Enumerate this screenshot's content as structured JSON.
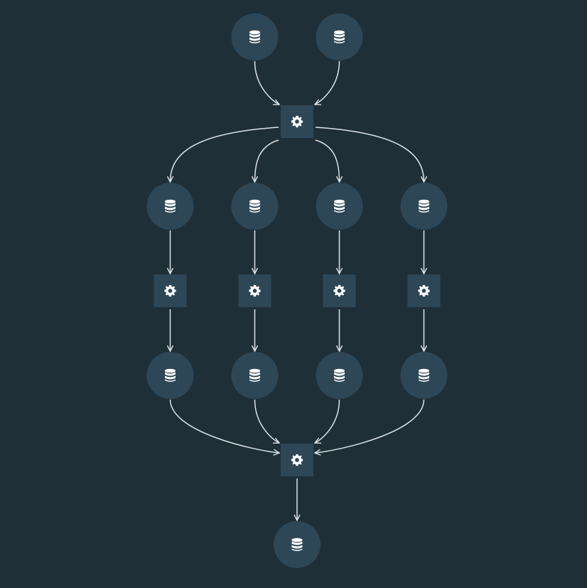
{
  "colors": {
    "background": "#1f2f38",
    "node_fill": "#2e4757",
    "edge": "#dde4e8",
    "icon": "#ffffff"
  },
  "icons": {
    "data_node": "database-icon",
    "process_node": "gear-icon"
  },
  "nodes": [
    {
      "id": "d1",
      "kind": "data",
      "col": 2,
      "row": 0
    },
    {
      "id": "d2",
      "kind": "data",
      "col": 3,
      "row": 0
    },
    {
      "id": "p1",
      "kind": "process",
      "col": 2.5,
      "row": 1
    },
    {
      "id": "d3",
      "kind": "data",
      "col": 1,
      "row": 2
    },
    {
      "id": "d4",
      "kind": "data",
      "col": 2,
      "row": 2
    },
    {
      "id": "d5",
      "kind": "data",
      "col": 3,
      "row": 2
    },
    {
      "id": "d6",
      "kind": "data",
      "col": 4,
      "row": 2
    },
    {
      "id": "p2",
      "kind": "process",
      "col": 1,
      "row": 3
    },
    {
      "id": "p3",
      "kind": "process",
      "col": 2,
      "row": 3
    },
    {
      "id": "p4",
      "kind": "process",
      "col": 3,
      "row": 3
    },
    {
      "id": "p5",
      "kind": "process",
      "col": 4,
      "row": 3
    },
    {
      "id": "d7",
      "kind": "data",
      "col": 1,
      "row": 4
    },
    {
      "id": "d8",
      "kind": "data",
      "col": 2,
      "row": 4
    },
    {
      "id": "d9",
      "kind": "data",
      "col": 3,
      "row": 4
    },
    {
      "id": "d10",
      "kind": "data",
      "col": 4,
      "row": 4
    },
    {
      "id": "p6",
      "kind": "process",
      "col": 2.5,
      "row": 5
    },
    {
      "id": "d11",
      "kind": "data",
      "col": 2.5,
      "row": 6
    }
  ],
  "edges": [
    [
      "d1",
      "p1"
    ],
    [
      "d2",
      "p1"
    ],
    [
      "p1",
      "d3"
    ],
    [
      "p1",
      "d4"
    ],
    [
      "p1",
      "d5"
    ],
    [
      "p1",
      "d6"
    ],
    [
      "d3",
      "p2"
    ],
    [
      "d4",
      "p3"
    ],
    [
      "d5",
      "p4"
    ],
    [
      "d6",
      "p5"
    ],
    [
      "p2",
      "d7"
    ],
    [
      "p3",
      "d8"
    ],
    [
      "p4",
      "d9"
    ],
    [
      "p5",
      "d10"
    ],
    [
      "d7",
      "p6"
    ],
    [
      "d8",
      "p6"
    ],
    [
      "d9",
      "p6"
    ],
    [
      "d10",
      "p6"
    ],
    [
      "p6",
      "d11"
    ]
  ]
}
